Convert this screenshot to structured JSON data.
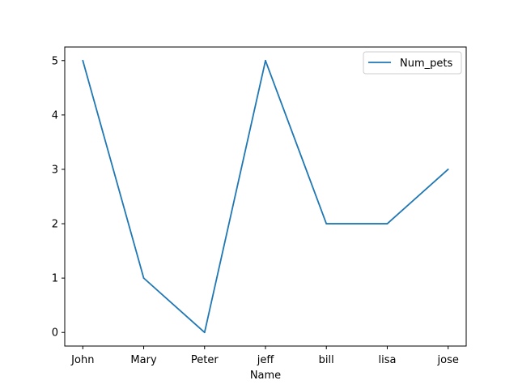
{
  "chart_data": {
    "type": "line",
    "categories": [
      "John",
      "Mary",
      "Peter",
      "jeff",
      "bill",
      "lisa",
      "jose"
    ],
    "series": [
      {
        "name": "Num_pets",
        "values": [
          5,
          1,
          0,
          5,
          2,
          2,
          3
        ],
        "color": "#1f77b4"
      }
    ],
    "xlabel": "Name",
    "ylabel": "",
    "ylim": [
      -0.25,
      5.25
    ],
    "yticks": [
      0,
      1,
      2,
      3,
      4,
      5
    ],
    "grid": false,
    "legend": "upper right"
  }
}
